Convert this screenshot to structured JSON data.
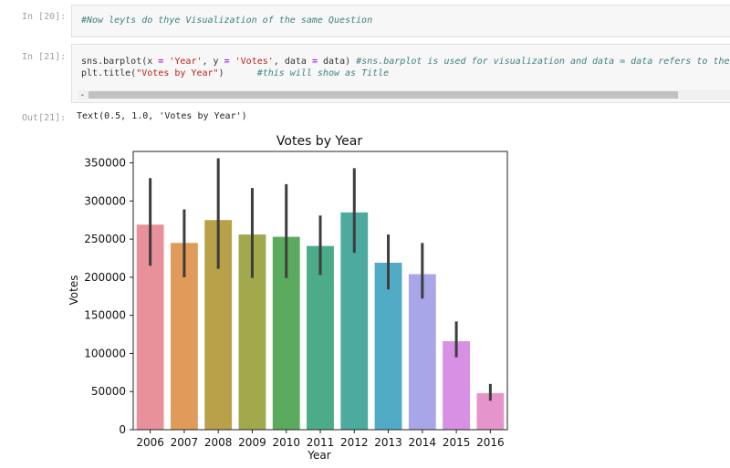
{
  "cells": {
    "in20_prompt": "In [20]:",
    "in20_code": "#Now leyts do thye Visualization of the same Question",
    "in21_prompt": "In [21]:",
    "in21_line1": {
      "a": "sns.barplot(x ",
      "op1": "=",
      "b": " ",
      "s1": "'Year'",
      "c": ", y ",
      "op2": "=",
      "d": " ",
      "s2": "'Votes'",
      "e": ", data ",
      "op3": "=",
      "f": " data) ",
      "comment": "#sns.barplot is used for visualization and data = data refers to the or"
    },
    "in21_line2": {
      "a": "plt.title(",
      "s": "\"Votes by Year\"",
      "b": ")      ",
      "comment": "#this will show as Title"
    },
    "scroll_arrow": "◂",
    "out21_prompt": "Out[21]:",
    "out21_text": "Text(0.5, 1.0, 'Votes by Year')"
  },
  "chart_data": {
    "type": "bar",
    "title": "Votes by Year",
    "xlabel": "Year",
    "ylabel": "Votes",
    "ylim": [
      0,
      365000
    ],
    "yticks": [
      0,
      50000,
      100000,
      150000,
      200000,
      250000,
      300000,
      350000
    ],
    "categories": [
      "2006",
      "2007",
      "2008",
      "2009",
      "2010",
      "2011",
      "2012",
      "2013",
      "2014",
      "2015",
      "2016"
    ],
    "values": [
      269000,
      245000,
      275000,
      256000,
      253000,
      241000,
      285000,
      219000,
      204000,
      116000,
      48000
    ],
    "error_low": [
      215000,
      200000,
      211000,
      199000,
      199000,
      203000,
      232000,
      184000,
      172000,
      95000,
      38000
    ],
    "error_high": [
      330000,
      289000,
      356000,
      317000,
      322000,
      281000,
      343000,
      256000,
      245000,
      142000,
      60000
    ],
    "colors": [
      "#e8919a",
      "#e09b5a",
      "#b9a14a",
      "#a2a84c",
      "#5aab5e",
      "#4cab89",
      "#4cab9e",
      "#52abc4",
      "#a8a5e9",
      "#d890e4",
      "#e695cc"
    ],
    "grid": false
  }
}
